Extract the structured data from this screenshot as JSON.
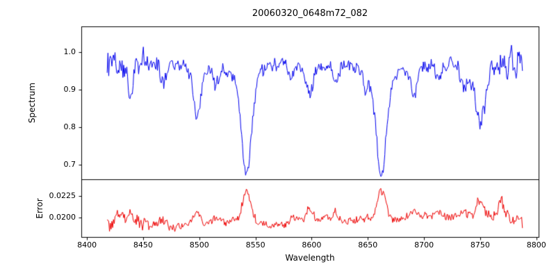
{
  "figure": {
    "background": "#ffffff",
    "frame_color": "#000000"
  },
  "chart_data": {
    "type": "line",
    "title": "20060320_0648m72_082",
    "xlabel": "Wavelength",
    "xlim": [
      8395,
      8802
    ],
    "x_data_range": [
      8418,
      8788
    ],
    "sampling_step": 0.7,
    "x_ticks": [
      8400,
      8450,
      8500,
      8550,
      8600,
      8650,
      8700,
      8750,
      8800
    ],
    "x_tick_labels": [
      "8400",
      "8450",
      "8500",
      "8550",
      "8600",
      "8650",
      "8700",
      "8750",
      "8800"
    ],
    "grid": false,
    "legend": "none",
    "panels": [
      {
        "name": "spectrum",
        "ylabel": "Spectrum",
        "color": "#0000ee",
        "ylim": [
          0.662,
          1.068
        ],
        "y_ticks": [
          0.7,
          0.8,
          0.9,
          1.0
        ],
        "y_tick_labels": [
          "0.7",
          "0.8",
          "0.9",
          "1.0"
        ],
        "continuum": 0.97,
        "continuum_bump": {
          "center": 8575,
          "height": 0.015,
          "width": 50
        },
        "continuum_wiggle": [
          {
            "amp": 0.006,
            "period": 145,
            "phase": 0.0
          },
          {
            "amp": 0.007,
            "period": 380,
            "phase": 2.0
          }
        ],
        "noise_amp": 0.015,
        "edge_noise_boost": 1.0,
        "edge_width": 30,
        "seed": 12,
        "absorption_lines": [
          {
            "center": 8439,
            "depth": 0.085,
            "width": 2.0
          },
          {
            "center": 8468,
            "depth": 0.05,
            "width": 2.0
          },
          {
            "center": 8498,
            "depth": 0.13,
            "width": 3.2
          },
          {
            "center": 8514,
            "depth": 0.045,
            "width": 2.0
          },
          {
            "center": 8542,
            "depth": 0.295,
            "width": 4.2
          },
          {
            "center": 8582,
            "depth": 0.045,
            "width": 2.2
          },
          {
            "center": 8598,
            "depth": 0.1,
            "width": 3.0
          },
          {
            "center": 8621,
            "depth": 0.05,
            "width": 2.0
          },
          {
            "center": 8648,
            "depth": 0.04,
            "width": 2.0
          },
          {
            "center": 8662,
            "depth": 0.29,
            "width": 4.2
          },
          {
            "center": 8691,
            "depth": 0.07,
            "width": 2.4
          },
          {
            "center": 8713,
            "depth": 0.04,
            "width": 2.0
          },
          {
            "center": 8736,
            "depth": 0.055,
            "width": 2.5
          },
          {
            "center": 8750,
            "depth": 0.165,
            "width": 4.5
          }
        ]
      },
      {
        "name": "error",
        "ylabel": "Error",
        "color": "#ee0000",
        "ylim": [
          0.0178,
          0.0244
        ],
        "y_ticks": [
          0.02,
          0.0225
        ],
        "y_tick_labels": [
          "0.0200",
          "0.0225"
        ],
        "baseline": 0.0192,
        "line_error_scale": 0.012,
        "line_width_factor": 0.9,
        "continuum_wiggle": [
          {
            "amp": 0.00025,
            "period": 90,
            "phase": 0.7
          },
          {
            "amp": 0.0002,
            "period": 300,
            "phase": 2.3
          }
        ],
        "broad_bumps": [
          {
            "center": 8429,
            "height": 0.0009,
            "width": 2.5
          },
          {
            "center": 8600,
            "height": 0.0005,
            "width": 80
          },
          {
            "center": 8715,
            "height": 0.0004,
            "width": 30
          },
          {
            "center": 8752,
            "height": 0.0006,
            "width": 25
          },
          {
            "center": 8768,
            "height": 0.0016,
            "width": 4.0
          }
        ],
        "noise_amp": 0.0004,
        "edge_noise_boost": 0.8,
        "edge_width": 30,
        "seed": 99
      }
    ]
  }
}
